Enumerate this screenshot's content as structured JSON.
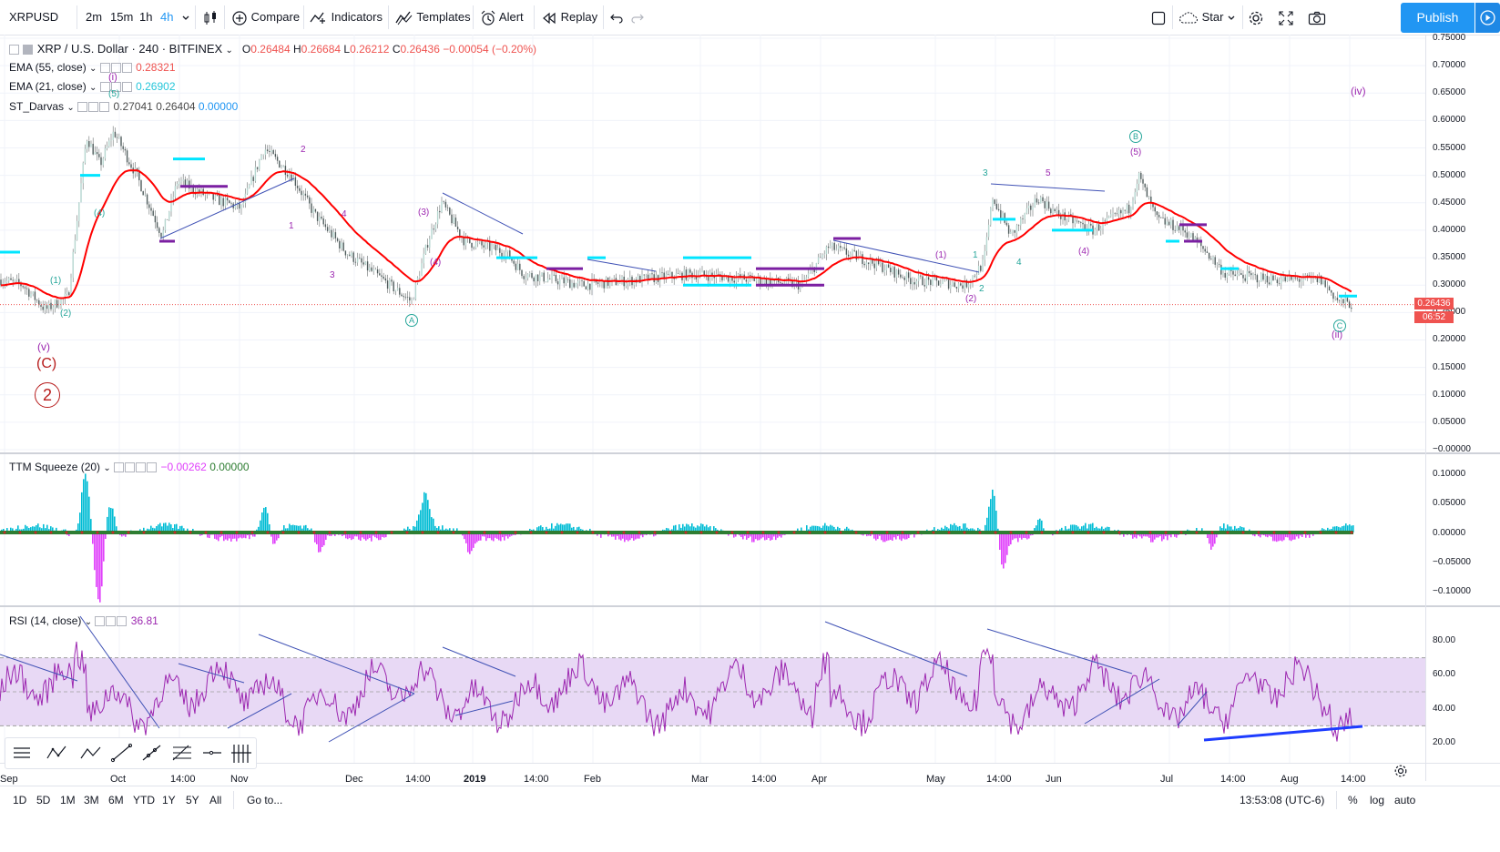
{
  "toolbar": {
    "symbol": "XRPUSD",
    "intervals": [
      "2m",
      "15m",
      "1h",
      "4h"
    ],
    "active_interval": "4h",
    "compare": "Compare",
    "indicators": "Indicators",
    "templates": "Templates",
    "alert": "Alert",
    "replay": "Replay",
    "star_label": "Star",
    "publish": "Publish"
  },
  "main_legend": {
    "title": "XRP / U.S. Dollar · 240 · BITFINEX",
    "o_label": "O",
    "o": "0.26484",
    "h_label": "H",
    "h": "0.26684",
    "l_label": "L",
    "l": "0.26212",
    "c_label": "C",
    "c": "0.26436",
    "change": "−0.00054 (−0.20%)",
    "ema55_label": "EMA (55, close)",
    "ema55_value": "0.28321",
    "ema21_label": "EMA (21, close)",
    "ema21_value": "0.26902",
    "darvas_label": "ST_Darvas",
    "darvas_v1": "0.27041",
    "darvas_v2": "0.26404",
    "darvas_v3": "0.00000"
  },
  "price_axis": {
    "ticks": [
      "0.75000",
      "0.70000",
      "0.65000",
      "0.60000",
      "0.55000",
      "0.50000",
      "0.45000",
      "0.40000",
      "0.35000",
      "0.30000",
      "0.25000",
      "0.20000",
      "0.15000",
      "0.10000",
      "0.05000",
      "−0.00000"
    ],
    "last_price": "0.26436",
    "countdown": "06:52"
  },
  "squeeze": {
    "label": "TTM Squeeze (20)",
    "value1": "−0.00262",
    "value2": "0.00000",
    "ticks": [
      "0.10000",
      "0.05000",
      "0.00000",
      "−0.05000",
      "−0.10000"
    ]
  },
  "rsi": {
    "label": "RSI (14, close)",
    "value": "36.81",
    "ticks": [
      "80.00",
      "60.00",
      "40.00",
      "20.00"
    ]
  },
  "time_axis": [
    "Sep",
    "Oct",
    "14:00",
    "Nov",
    "Dec",
    "14:00",
    "2019",
    "14:00",
    "Feb",
    "Mar",
    "14:00",
    "Apr",
    "May",
    "14:00",
    "Jun",
    "Jul",
    "14:00",
    "Aug",
    "14:00"
  ],
  "bottom": {
    "ranges": [
      "1D",
      "5D",
      "1M",
      "3M",
      "6M",
      "YTD",
      "1Y",
      "5Y",
      "All"
    ],
    "goto": "Go to...",
    "clock": "13:53:08 (UTC-6)",
    "pct": "%",
    "log": "log",
    "auto": "auto"
  },
  "wave_labels": {
    "v": "(v)",
    "C_big": "(C)",
    "two": "2",
    "i": "(i)",
    "five_a": "(5)",
    "iv": "(iv)",
    "ii": "(ii)",
    "A": "A",
    "B": "B",
    "Cc": "C",
    "five_b": "(5)",
    "three_p": "(3)",
    "four_p": "(4)",
    "two_p": "(2)",
    "one_p": "(1)",
    "n1": "1",
    "n2": "2",
    "n3": "3",
    "n4": "4",
    "n5": "5"
  },
  "colors": {
    "accent": "#2196f3",
    "ema_red": "#ff0000",
    "darvas_cyan": "#00e5ff",
    "darvas_purple": "#7b1fa2",
    "wave_purple": "#9c27b0",
    "wave_red": "#b71c1c",
    "rsi_line": "#9c27b0",
    "rsi_band": "#e8d9f5",
    "squeeze_pos": "#00bcd4",
    "squeeze_neg": "#e040fb",
    "price_tag": "#ef5350"
  }
}
